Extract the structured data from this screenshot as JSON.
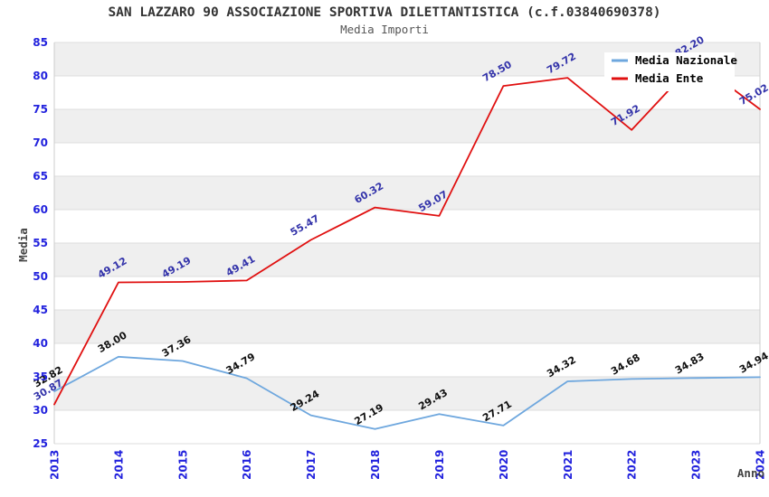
{
  "chart_data": {
    "type": "line",
    "title": "SAN LAZZARO 90 ASSOCIAZIONE SPORTIVA DILETTANTISTICA (c.f.03840690378)",
    "subtitle": "Media Importi",
    "xlabel": "Anno",
    "ylabel": "Media",
    "x": [
      "2013",
      "2014",
      "2015",
      "2016",
      "2017",
      "2018",
      "2019",
      "2020",
      "2021",
      "2022",
      "2023",
      "2024"
    ],
    "series": [
      {
        "name": "Media Nazionale",
        "color": "#6ea7de",
        "label_color": "#111111",
        "values": [
          "32.82",
          "38.00",
          "37.36",
          "34.79",
          "29.24",
          "27.19",
          "29.43",
          "27.71",
          "34.32",
          "34.68",
          "34.83",
          "34.94"
        ]
      },
      {
        "name": "Media Ente",
        "color": "#e01010",
        "label_color": "#3333aa",
        "values": [
          "30.87",
          "49.12",
          "49.19",
          "49.41",
          "55.47",
          "60.32",
          "59.07",
          "78.50",
          "79.72",
          "71.92",
          "82.20",
          "75.02"
        ]
      }
    ],
    "ylim": [
      25,
      85
    ],
    "ytick_step": 5,
    "yticks": [
      "25",
      "30",
      "35",
      "40",
      "45",
      "50",
      "55",
      "60",
      "65",
      "70",
      "75",
      "80",
      "85"
    ],
    "grid": "horizontal-bands",
    "band_colors": [
      "#efefef",
      "#ffffff"
    ],
    "gridline_color": "#dddddd",
    "plot_border_color": "#cccccc",
    "axis_tick_color": "#2222dd",
    "axis_title_color": "#444444",
    "legend_position": "top-right",
    "legend_background": "#ffffff"
  }
}
